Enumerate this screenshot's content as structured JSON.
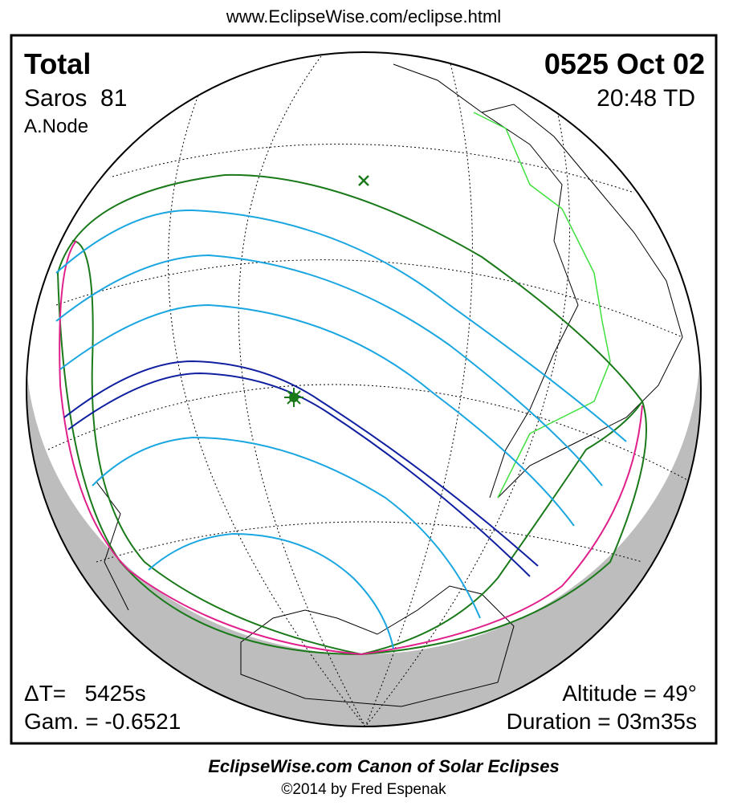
{
  "header": {
    "url": "www.EclipseWise.com/eclipse.html"
  },
  "panel": {
    "eclipse_type": "Total",
    "date": "0525 Oct 02",
    "saros": "Saros  81",
    "time": "20:48 TD",
    "node": "A.Node",
    "delta_t": "ΔT=   5425s",
    "gamma": "Gam. = -0.6521",
    "altitude": "Altitude = 49°",
    "duration": "Duration = 03m35s"
  },
  "footer": {
    "title": "EclipseWise.com Canon of Solar Eclipses",
    "credit": "©2014 by Fred Espenak"
  }
}
